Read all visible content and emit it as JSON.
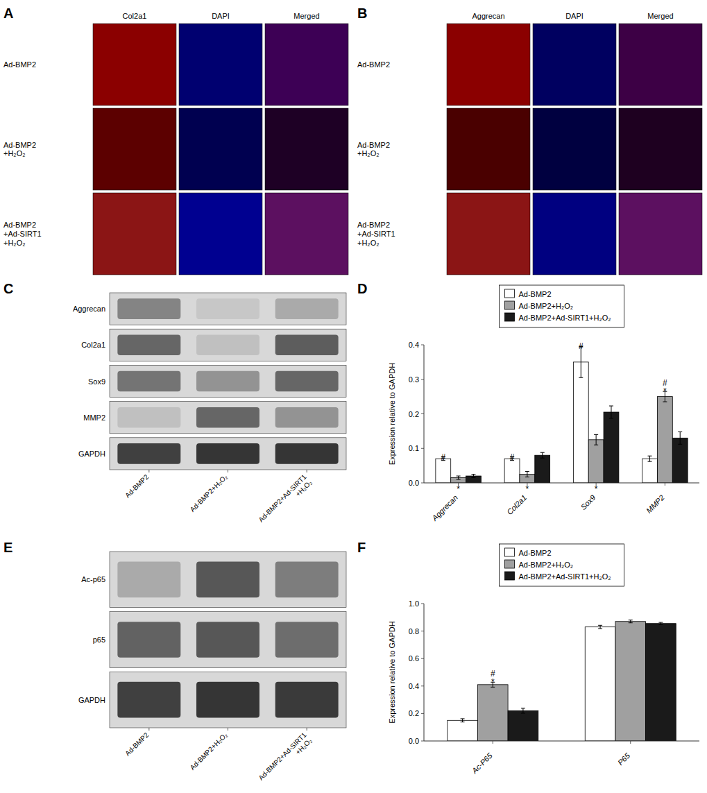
{
  "chart_data": [
    {
      "type": "image_grid",
      "title": "A",
      "columns": [
        "Col2a1",
        "DAPI",
        "Merged"
      ],
      "rows": [
        "Ad-BMP2",
        "Ad-BMP2\n+H₂O₂",
        "Ad-BMP2\n+Ad-SIRT1\n+H₂O₂"
      ],
      "colors": [
        [
          "#8B0000",
          "#000070",
          "#3d0055"
        ],
        [
          "#5C0000",
          "#000050",
          "#1e0025"
        ],
        [
          "#8B1515",
          "#000090",
          "#5C1060"
        ]
      ]
    },
    {
      "type": "image_grid",
      "title": "B",
      "columns": [
        "Aggrecan",
        "DAPI",
        "Merged"
      ],
      "rows": [
        "Ad-BMP2",
        "Ad-BMP2\n+H₂O₂",
        "Ad-BMP2\n+Ad-SIRT1\n+H₂O₂"
      ],
      "colors": [
        [
          "#8B0000",
          "#000060",
          "#3d0045"
        ],
        [
          "#4A0000",
          "#000040",
          "#1e0020"
        ],
        [
          "#8B1515",
          "#000080",
          "#5C1060"
        ]
      ]
    },
    {
      "type": "heatmap",
      "title": "C",
      "rows": [
        "Aggrecan",
        "Col2a1",
        "Sox9",
        "MMP2",
        "GAPDH"
      ],
      "categories": [
        "Ad-BMP2",
        "Ad-BMP2+H₂O₂",
        "Ad-BMP2+Ad-SIRT1\n+H₂O₂"
      ],
      "cells": [
        [
          0.55,
          0.25,
          0.38
        ],
        [
          0.68,
          0.28,
          0.72
        ],
        [
          0.62,
          0.48,
          0.68
        ],
        [
          0.28,
          0.68,
          0.48
        ],
        [
          0.85,
          0.9,
          0.9
        ]
      ]
    },
    {
      "type": "bar",
      "title": "D",
      "categories": [
        "Aggrecan",
        "Col2a1",
        "Sox9",
        "MMP2"
      ],
      "series": [
        {
          "name": "Ad-BMP2",
          "color": "white",
          "values": [
            0.07,
            0.07,
            0.35,
            0.07
          ],
          "errors": [
            0.005,
            0.005,
            0.045,
            0.008
          ]
        },
        {
          "name": "Ad-BMP2+H₂O₂",
          "color": "#a0a0a0",
          "values": [
            0.015,
            0.025,
            0.125,
            0.25
          ],
          "errors": [
            0.005,
            0.008,
            0.015,
            0.015
          ]
        },
        {
          "name": "Ad-BMP2+Ad-SIRT1+H₂O₂",
          "color": "#1a1a1a",
          "values": [
            0.02,
            0.08,
            0.205,
            0.13
          ],
          "errors": [
            0.005,
            0.008,
            0.018,
            0.018
          ]
        }
      ],
      "edge_color": "black",
      "ylim": [
        0,
        0.4
      ],
      "yticks": [
        {
          "value": 0.0,
          "label": "0.0"
        },
        0.1,
        0.2,
        0.3,
        0.4
      ],
      "ylabel": "Expression relative to GAPDH",
      "legend": "top",
      "annotations": [
        {
          "text": "*",
          "category": 0,
          "series": 1,
          "position": "below"
        },
        {
          "text": "*",
          "category": 1,
          "series": 1,
          "position": "below"
        },
        {
          "text": "*",
          "category": 2,
          "series": 1,
          "position": "below"
        },
        {
          "text": "*",
          "category": 3,
          "series": 1,
          "position": "above"
        },
        {
          "text": "#",
          "category": 0,
          "series": 0,
          "position": "above"
        },
        {
          "text": "#",
          "category": 1,
          "series": 0,
          "position": "above"
        },
        {
          "text": "#",
          "category": 2,
          "series": 0,
          "position": "above"
        },
        {
          "text": "#",
          "category": 3,
          "series": 1,
          "position": "above"
        }
      ]
    },
    {
      "type": "heatmap",
      "title": "E",
      "rows": [
        "Ac-p65",
        "p65",
        "GAPDH"
      ],
      "categories": [
        "Ad-BMP2",
        "Ad-BMP2+H₂O₂",
        "Ad-BMP2+Ad-SIRT1\n+H₂O₂"
      ],
      "cells": [
        [
          0.38,
          0.75,
          0.58
        ],
        [
          0.7,
          0.75,
          0.65
        ],
        [
          0.85,
          0.9,
          0.88
        ]
      ]
    },
    {
      "type": "bar",
      "title": "F",
      "categories": [
        "Ac-P65",
        "P65"
      ],
      "series": [
        {
          "name": "Ad-BMP2",
          "color": "white",
          "values": [
            0.15,
            0.83
          ],
          "errors": [
            0.012,
            0.012
          ]
        },
        {
          "name": "Ad-BMP2+H₂O₂",
          "color": "#a0a0a0",
          "values": [
            0.41,
            0.87
          ],
          "errors": [
            0.018,
            0.01
          ]
        },
        {
          "name": "Ad-BMP2+Ad-SIRT1+H₂O₂",
          "color": "#1a1a1a",
          "values": [
            0.22,
            0.855
          ],
          "errors": [
            0.018,
            0.008
          ]
        }
      ],
      "edge_color": "black",
      "ylim": [
        0,
        1.0
      ],
      "yticks": [
        {
          "value": 0.0,
          "label": "0.0"
        },
        0.2,
        0.4,
        0.6,
        0.8,
        {
          "value": 1.0,
          "label": "1.0"
        }
      ],
      "ylabel": "Expression relative to GAPDH",
      "legend": "top",
      "annotations": [
        {
          "text": "*",
          "category": 0,
          "series": 1,
          "position": "above"
        },
        {
          "text": "#",
          "category": 0,
          "series": 1,
          "position": "above"
        }
      ]
    }
  ]
}
